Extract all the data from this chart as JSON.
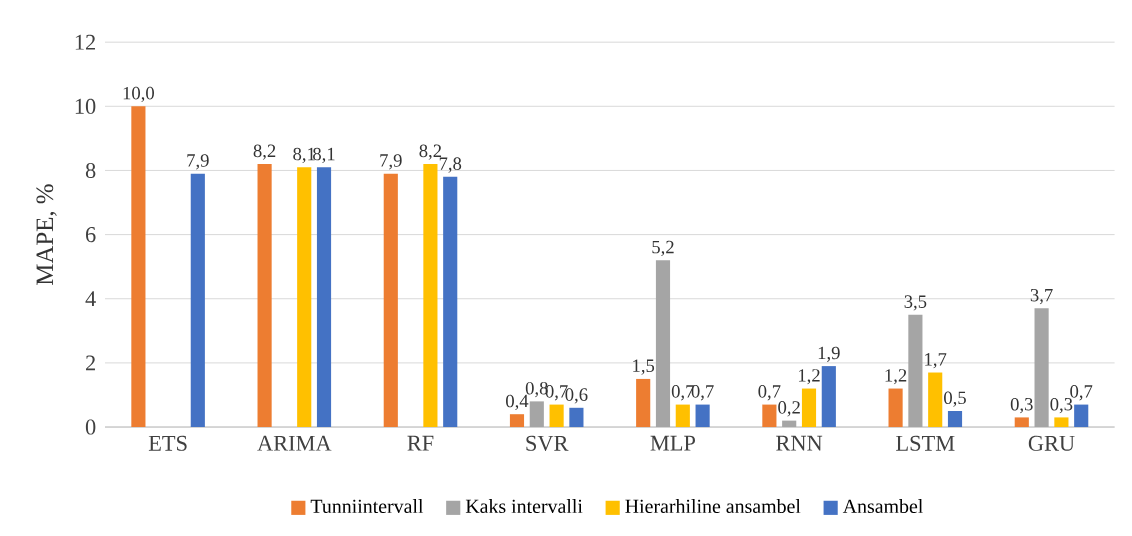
{
  "chart_data": {
    "type": "bar",
    "ylabel": "MAPE, %",
    "categories": [
      "ETS",
      "ARIMA",
      "RF",
      "SVR",
      "MLP",
      "RNN",
      "LSTM",
      "GRU"
    ],
    "series": [
      {
        "name": "Tunniintervall",
        "color": "#ed7d31",
        "values": [
          10.0,
          8.2,
          7.9,
          0.4,
          1.5,
          0.7,
          1.2,
          0.3
        ],
        "value_labels": [
          "10,0",
          "8,2",
          "7,9",
          "0,4",
          "1,5",
          "0,7",
          "1,2",
          "0,3"
        ]
      },
      {
        "name": "Kaks intervalli",
        "color": "#a5a5a5",
        "values": [
          null,
          null,
          null,
          0.8,
          5.2,
          0.2,
          3.5,
          3.7
        ],
        "value_labels": [
          null,
          null,
          null,
          "0,8",
          "5,2",
          "0,2",
          "3,5",
          "3,7"
        ]
      },
      {
        "name": "Hierarhiline ansambel",
        "color": "#ffc000",
        "values": [
          null,
          8.1,
          8.2,
          0.7,
          0.7,
          1.2,
          1.7,
          0.3
        ],
        "value_labels": [
          null,
          "8,1",
          "8,2",
          "0,7",
          "0,7",
          "1,2",
          "1,7",
          "0,3"
        ]
      },
      {
        "name": "Ansambel",
        "color": "#4472c4",
        "values": [
          7.9,
          8.1,
          7.8,
          0.6,
          0.7,
          1.9,
          0.5,
          0.7
        ],
        "value_labels": [
          "7,9",
          "8,1",
          "7,8",
          "0,6",
          "0,7",
          "1,9",
          "0,5",
          "0,7"
        ]
      }
    ],
    "ylim": [
      0,
      12
    ],
    "yticks": [
      0,
      2,
      4,
      6,
      8,
      10,
      12
    ],
    "grid": "y",
    "legend": "bottom"
  }
}
